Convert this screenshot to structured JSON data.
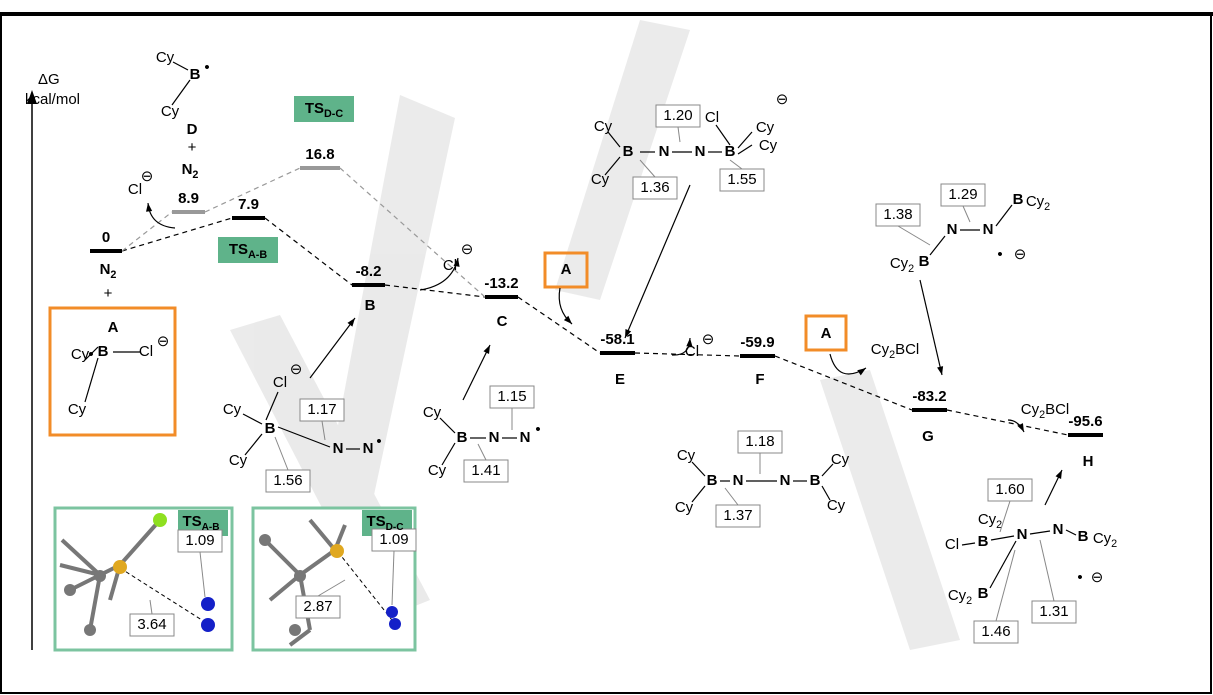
{
  "axis": {
    "symbol": "ΔG",
    "unit": "kcal/mol"
  },
  "levels": [
    {
      "energy": 0
    },
    {
      "energy": 8.9
    },
    {
      "energy": 16.8,
      "name": {
        "text": "TS",
        "sub": "D-C"
      }
    },
    {
      "energy": 7.9,
      "name": {
        "text": "TS",
        "sub": "A-B"
      }
    },
    {
      "energy": -8.2,
      "name": "B"
    },
    {
      "energy": -13.2,
      "name": "C"
    },
    {
      "energy": -58.1,
      "name": "E"
    },
    {
      "energy": -59.9,
      "name": "F"
    },
    {
      "energy": -83.2,
      "name": "G"
    },
    {
      "energy": -95.6,
      "name": "H"
    }
  ],
  "labels": [
    "A",
    "Cy",
    "B",
    "Cl",
    "⊖",
    "Cy",
    "•",
    {
      "text": "N",
      "sub": "2"
    },
    "+",
    "Cy",
    "B",
    "•",
    "Cy",
    "D",
    "+",
    {
      "text": "N",
      "sub": "2"
    },
    "Cl",
    "⊖",
    "Cl",
    "⊖",
    "A",
    "Cl",
    "⊖",
    "A",
    {
      "text": "Cy",
      "sub": "2",
      "after": "BCl"
    },
    {
      "text": "Cy",
      "sub": "2",
      "after": "BCl"
    },
    "Cl",
    "B",
    "Cy",
    "⊖",
    "Cy",
    "N",
    "N",
    "B",
    "Cy",
    "Cy",
    "B",
    {
      "text": "Cy",
      "sub": "2"
    },
    "N",
    "N",
    {
      "text": "Cy",
      "sub": "2"
    },
    "B",
    "•",
    "⊖",
    "Cl",
    "⊖",
    "Cy",
    "B",
    "Cy",
    "N",
    "N",
    "•",
    "Cy",
    "B",
    "Cy",
    "N",
    "N",
    "•",
    "Cy",
    "B",
    "Cy",
    "N",
    "N",
    "B",
    "Cy",
    "Cy",
    {
      "text": "Cy",
      "sub": "2"
    },
    "Cl",
    "B",
    "N",
    "N",
    "B",
    {
      "text": "Cy",
      "sub": "2"
    },
    "•",
    "⊖",
    {
      "text": "Cy",
      "sub": "2"
    },
    "B"
  ],
  "bond_lengths": [
    "1.20",
    "1.36",
    "1.55",
    "1.29",
    "1.38",
    "1.17",
    "1.56",
    "1.15",
    "1.41",
    "1.18",
    "1.37",
    "1.60",
    "1.31",
    "1.46",
    "1.09",
    "3.64",
    "1.09",
    "2.87"
  ],
  "insets": [
    {
      "title": {
        "text": "TS",
        "sub": "A-B"
      }
    },
    {
      "title": {
        "text": "TS",
        "sub": "D-C"
      }
    }
  ]
}
